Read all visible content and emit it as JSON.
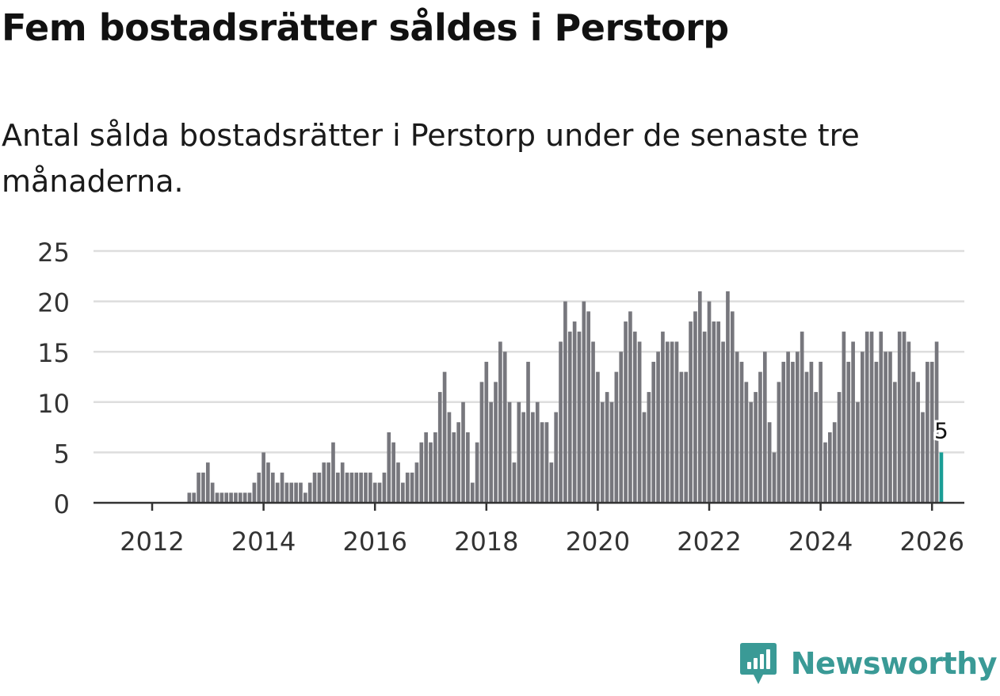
{
  "title": "Fem bostadsrätter såldes i Perstorp",
  "subtitle": "Antal sålda bostadsrätter i Perstorp under de senaste tre månaderna.",
  "brand": "Newsworthy",
  "colors": {
    "bar": "#77777d",
    "highlight": "#1a9e96",
    "grid": "#dddddd",
    "axis": "#333333",
    "brand": "#3a9a96"
  },
  "chart_data": {
    "type": "bar",
    "title": "Fem bostadsrätter såldes i Perstorp",
    "xlabel": "",
    "ylabel": "",
    "ylim": [
      0,
      25
    ],
    "yticks": [
      "0",
      "5",
      "10",
      "15",
      "20",
      "25"
    ],
    "xticks": [
      "2012",
      "2014",
      "2016",
      "2018",
      "2020",
      "2022",
      "2024",
      "2026"
    ],
    "start": "2011-06",
    "end": "2026-03",
    "highlight_label": "5",
    "values": [
      0,
      0,
      0,
      0,
      0,
      0,
      0,
      0,
      0,
      0,
      0,
      0,
      0,
      0,
      0,
      1,
      1,
      3,
      3,
      4,
      2,
      1,
      1,
      1,
      1,
      1,
      1,
      1,
      1,
      2,
      3,
      5,
      4,
      3,
      2,
      3,
      2,
      2,
      2,
      2,
      1,
      2,
      3,
      3,
      4,
      4,
      6,
      3,
      4,
      3,
      3,
      3,
      3,
      3,
      3,
      2,
      2,
      3,
      7,
      6,
      4,
      2,
      3,
      3,
      4,
      6,
      7,
      6,
      7,
      11,
      13,
      9,
      7,
      8,
      10,
      7,
      2,
      6,
      12,
      14,
      10,
      12,
      16,
      15,
      10,
      4,
      10,
      9,
      14,
      9,
      10,
      8,
      8,
      4,
      9,
      16,
      20,
      17,
      18,
      17,
      20,
      19,
      16,
      13,
      10,
      11,
      10,
      13,
      15,
      18,
      19,
      17,
      16,
      9,
      11,
      14,
      15,
      17,
      16,
      16,
      16,
      13,
      13,
      18,
      19,
      21,
      17,
      20,
      18,
      18,
      16,
      21,
      19,
      15,
      14,
      12,
      10,
      11,
      13,
      15,
      8,
      5,
      12,
      14,
      15,
      14,
      15,
      17,
      13,
      14,
      11,
      14,
      6,
      7,
      8,
      11,
      17,
      14,
      16,
      10,
      15,
      17,
      17,
      14,
      17,
      15,
      15,
      12,
      17,
      17,
      16,
      13,
      12,
      9,
      14,
      14,
      16,
      5
    ]
  }
}
